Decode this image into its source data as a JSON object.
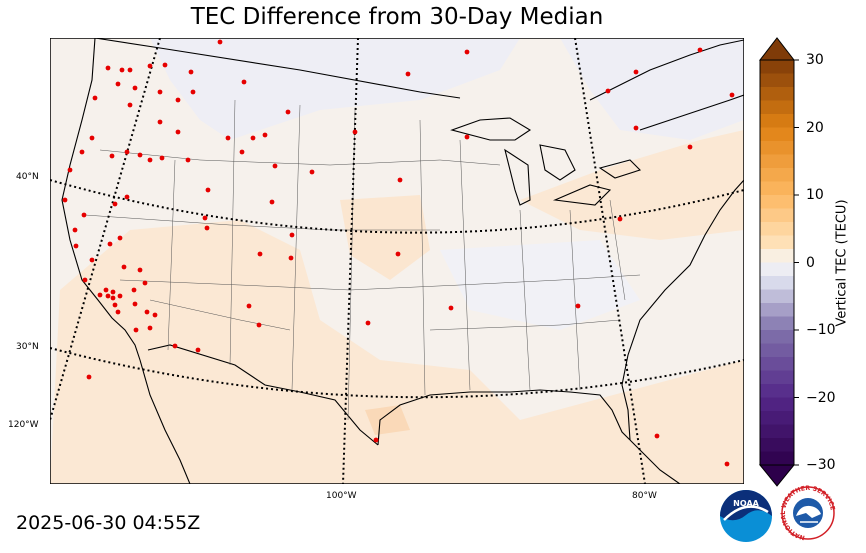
{
  "title": "TEC Difference from 30-Day Median",
  "timestamp": "2025-06-30 04:55Z",
  "map": {
    "projection": "lambert-conformal",
    "region": "Continental United States",
    "station_marker_color": "#e60000",
    "lat_labels": [
      "40°N",
      "30°N",
      "120°W"
    ],
    "lon_labels": [
      "100°W",
      "80°W"
    ]
  },
  "colorbar": {
    "title": "Vertical TEC (TECU)",
    "min": -30,
    "max": 30,
    "ticks": [
      "30",
      "20",
      "10",
      "0",
      "−10",
      "−20",
      "−30"
    ],
    "colormap": "PuOr_r",
    "extend": "both"
  },
  "logos": {
    "noaa": "NOAA",
    "nws_ring": "NATIONAL WEATHER SERVICE"
  }
}
